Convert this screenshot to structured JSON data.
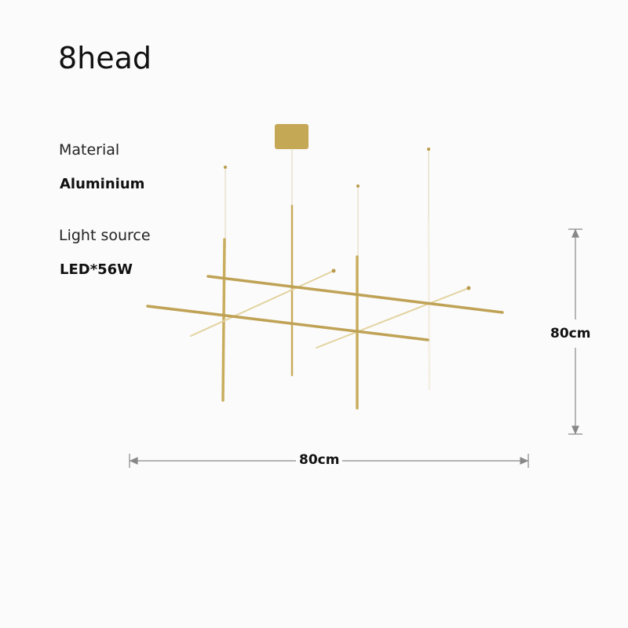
{
  "title": "8head",
  "specs": [
    {
      "label": "Material",
      "value": "Aluminium"
    },
    {
      "label": "Light source",
      "value": "LED*56W"
    }
  ],
  "dimensions": {
    "height": "80cm",
    "width": "80cm"
  },
  "colors": {
    "brass": "#c9ad5e",
    "background": "#fbfbfb",
    "dimension_line": "#888888"
  }
}
